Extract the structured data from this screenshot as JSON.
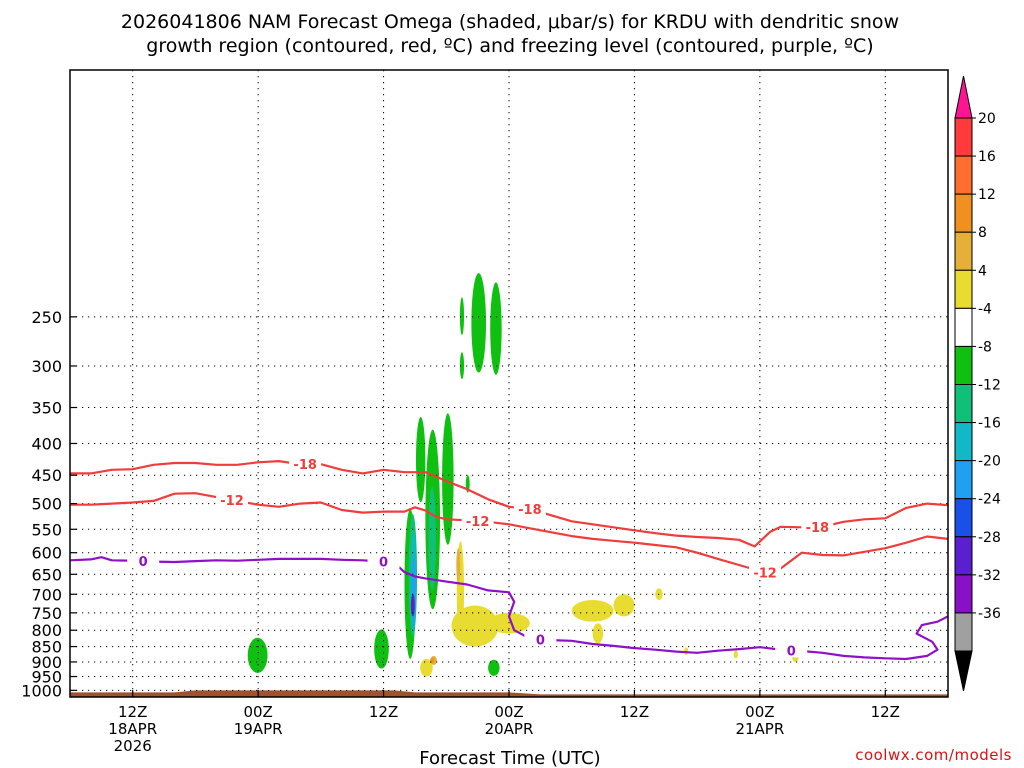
{
  "chart_data": {
    "type": "heatmap",
    "title_line1": "2026041806 NAM Forecast Omega (shaded, μbar/s) for KRDU with dendritic snow",
    "title_line2": "growth region (contoured, red, ºC) and freezing level (contoured, purple, ºC)",
    "xlabel": "Forecast Time (UTC)",
    "ylabel": "",
    "credit": "coolwx.com/models",
    "x_range_hours": [
      0,
      84
    ],
    "y_range_hpa": [
      1025,
      100
    ],
    "y_ticks": [
      250,
      300,
      350,
      400,
      450,
      500,
      550,
      600,
      650,
      700,
      750,
      800,
      850,
      900,
      950,
      1000
    ],
    "x_ticks": [
      {
        "hour": 6,
        "line1": "12Z",
        "line2": "18APR",
        "line3": "2026"
      },
      {
        "hour": 18,
        "line1": "00Z",
        "line2": "19APR",
        "line3": ""
      },
      {
        "hour": 30,
        "line1": "12Z",
        "line2": "",
        "line3": ""
      },
      {
        "hour": 42,
        "line1": "00Z",
        "line2": "20APR",
        "line3": ""
      },
      {
        "hour": 54,
        "line1": "12Z",
        "line2": "",
        "line3": ""
      },
      {
        "hour": 66,
        "line1": "00Z",
        "line2": "21APR",
        "line3": ""
      },
      {
        "hour": 78,
        "line1": "12Z",
        "line2": "",
        "line3": ""
      }
    ],
    "colorbar": {
      "labels": [
        "20",
        "16",
        "12",
        "8",
        "4",
        "-4",
        "-8",
        "-12",
        "-16",
        "-20",
        "-24",
        "-28",
        "-32",
        "-36"
      ],
      "colors": [
        "#ff1493",
        "#ff3b3b",
        "#ff6e2e",
        "#f0901e",
        "#e6b038",
        "#e8dc30",
        "#ffffff",
        "#10c010",
        "#10c078",
        "#10b8c8",
        "#20a0f0",
        "#1a50e8",
        "#5a20d0",
        "#8a10c8",
        "#a0a0a0",
        "#000000"
      ]
    },
    "contours": [
      {
        "name": "dgz-upper",
        "kind": "dendritic_-18C",
        "color": "#f03c3c",
        "labels": [
          {
            "text": "-18",
            "hour": 22.5
          },
          {
            "text": "-18",
            "hour": 44
          },
          {
            "text": "-18",
            "hour": 71.5
          }
        ],
        "points": [
          [
            0,
            447
          ],
          [
            2,
            447
          ],
          [
            4,
            441
          ],
          [
            6,
            440
          ],
          [
            8,
            433
          ],
          [
            10,
            430
          ],
          [
            12,
            430
          ],
          [
            14,
            433
          ],
          [
            16,
            433
          ],
          [
            18,
            429
          ],
          [
            20,
            427
          ],
          [
            22,
            432
          ],
          [
            24,
            432
          ],
          [
            26,
            441
          ],
          [
            28,
            447
          ],
          [
            30,
            441
          ],
          [
            32,
            445
          ],
          [
            34,
            445
          ],
          [
            35,
            452
          ],
          [
            36,
            460
          ],
          [
            38,
            474
          ],
          [
            40,
            492
          ],
          [
            42,
            506
          ],
          [
            44,
            510
          ],
          [
            46,
            522
          ],
          [
            48,
            534
          ],
          [
            50,
            540
          ],
          [
            52,
            546
          ],
          [
            54,
            552
          ],
          [
            56,
            558
          ],
          [
            58,
            563
          ],
          [
            60,
            566
          ],
          [
            62,
            568
          ],
          [
            64,
            572
          ],
          [
            65.5,
            586
          ],
          [
            67,
            555
          ],
          [
            68,
            545
          ],
          [
            70,
            546
          ],
          [
            72,
            545
          ],
          [
            74,
            535
          ],
          [
            76,
            530
          ],
          [
            78,
            528
          ],
          [
            80,
            508
          ],
          [
            82,
            500
          ],
          [
            84,
            503
          ]
        ]
      },
      {
        "name": "dgz-lower",
        "kind": "dendritic_-12C",
        "color": "#f03c3c",
        "labels": [
          {
            "text": "-12",
            "hour": 15.5
          },
          {
            "text": "-12",
            "hour": 39
          },
          {
            "text": "-12",
            "hour": 66.5
          }
        ],
        "points": [
          [
            0,
            502
          ],
          [
            2,
            502
          ],
          [
            4,
            500
          ],
          [
            6,
            498
          ],
          [
            8,
            495
          ],
          [
            10,
            482
          ],
          [
            12,
            481
          ],
          [
            14,
            488
          ],
          [
            16,
            495
          ],
          [
            18,
            502
          ],
          [
            20,
            506
          ],
          [
            22,
            500
          ],
          [
            24,
            498
          ],
          [
            26,
            512
          ],
          [
            28,
            517
          ],
          [
            30,
            515
          ],
          [
            32,
            515
          ],
          [
            33,
            507
          ],
          [
            34,
            513
          ],
          [
            35,
            525
          ],
          [
            36,
            530
          ],
          [
            38,
            532
          ],
          [
            40,
            535
          ],
          [
            42,
            540
          ],
          [
            44,
            548
          ],
          [
            46,
            556
          ],
          [
            48,
            564
          ],
          [
            50,
            570
          ],
          [
            52,
            574
          ],
          [
            54,
            578
          ],
          [
            56,
            583
          ],
          [
            58,
            588
          ],
          [
            60,
            600
          ],
          [
            62,
            614
          ],
          [
            64,
            628
          ],
          [
            66,
            642
          ],
          [
            67,
            650
          ],
          [
            68,
            636
          ],
          [
            70,
            600
          ],
          [
            72,
            605
          ],
          [
            74,
            606
          ],
          [
            76,
            598
          ],
          [
            78,
            590
          ],
          [
            80,
            578
          ],
          [
            82,
            565
          ],
          [
            84,
            570
          ]
        ]
      },
      {
        "name": "freezing-level",
        "kind": "freezing_0C",
        "color": "#9010c8",
        "labels": [
          {
            "text": "0",
            "hour": 7
          },
          {
            "text": "0",
            "hour": 30
          },
          {
            "text": "0",
            "hour": 45
          },
          {
            "text": "0",
            "hour": 69
          }
        ],
        "points": [
          [
            0,
            617
          ],
          [
            2,
            615
          ],
          [
            3,
            610
          ],
          [
            4,
            617
          ],
          [
            6,
            618
          ],
          [
            8,
            620
          ],
          [
            10,
            621
          ],
          [
            12,
            619
          ],
          [
            14,
            617
          ],
          [
            16,
            618
          ],
          [
            18,
            616
          ],
          [
            20,
            614
          ],
          [
            22,
            614
          ],
          [
            24,
            614
          ],
          [
            26,
            616
          ],
          [
            28,
            617
          ],
          [
            30,
            620
          ],
          [
            31,
            622
          ],
          [
            32,
            645
          ],
          [
            33,
            655
          ],
          [
            34,
            660
          ],
          [
            36,
            668
          ],
          [
            38,
            675
          ],
          [
            40,
            690
          ],
          [
            42,
            695
          ],
          [
            42.5,
            720
          ],
          [
            42,
            760
          ],
          [
            42.5,
            800
          ],
          [
            44,
            825
          ],
          [
            46,
            830
          ],
          [
            48,
            832
          ],
          [
            50,
            842
          ],
          [
            52,
            848
          ],
          [
            54,
            855
          ],
          [
            56,
            860
          ],
          [
            58,
            866
          ],
          [
            60,
            870
          ],
          [
            62,
            863
          ],
          [
            64,
            858
          ],
          [
            66,
            852
          ],
          [
            68,
            860
          ],
          [
            70,
            864
          ],
          [
            72,
            870
          ],
          [
            74,
            880
          ],
          [
            76,
            885
          ],
          [
            78,
            888
          ],
          [
            80,
            890
          ],
          [
            82,
            880
          ],
          [
            83,
            860
          ],
          [
            82.5,
            835
          ],
          [
            81,
            810
          ],
          [
            81.5,
            785
          ],
          [
            83,
            775
          ],
          [
            84,
            760
          ]
        ]
      }
    ],
    "shaded_regions": [
      {
        "name": "omega-ascent",
        "value_range": "-4 to -8",
        "color": "#10c010",
        "cells": [
          [
            37.3,
            250,
            0.4,
            35
          ],
          [
            37.3,
            300,
            0.4,
            30
          ],
          [
            38.4,
            260,
            1.4,
            95
          ],
          [
            40.2,
            265,
            1.1,
            90
          ],
          [
            17.0,
            880,
            1.9,
            115
          ],
          [
            29.1,
            860,
            1.4,
            125
          ],
          [
            33.1,
            430,
            0.9,
            135
          ],
          [
            32.0,
            700,
            1.1,
            380
          ],
          [
            34.0,
            560,
            1.4,
            360
          ],
          [
            35.6,
            470,
            1.1,
            225
          ],
          [
            37.9,
            465,
            0.3,
            30
          ],
          [
            40.0,
            920,
            1.1,
            55
          ]
        ]
      },
      {
        "name": "omega-ascent",
        "value_range": "-8 to -12",
        "color": "#10c078",
        "cells": [
          [
            32.4,
            670,
            0.8,
            300
          ],
          [
            34.3,
            580,
            0.7,
            220
          ]
        ]
      },
      {
        "name": "omega-ascent",
        "value_range": "-12 to -16",
        "color": "#10b8c8",
        "cells": [
          [
            32.6,
            680,
            0.5,
            250
          ]
        ]
      },
      {
        "name": "omega-ascent",
        "value_range": "-16 to -20",
        "color": "#20a0f0",
        "cells": [
          [
            32.7,
            700,
            0.3,
            180
          ]
        ]
      },
      {
        "name": "omega-ascent",
        "value_range": "-24 to -28",
        "color": "#5a20d0",
        "cells": [
          [
            32.7,
            730,
            0.2,
            60
          ]
        ]
      },
      {
        "name": "omega-descent",
        "value_range": "4 to 8",
        "color": "#e8dc30",
        "cells": [
          [
            37.0,
            700,
            0.7,
            250
          ],
          [
            36.5,
            790,
            4.5,
            120
          ],
          [
            40.0,
            780,
            4.0,
            60
          ],
          [
            48.0,
            745,
            4.0,
            60
          ],
          [
            52.0,
            730,
            2.0,
            60
          ],
          [
            56.0,
            700,
            0.7,
            30
          ],
          [
            50.0,
            810,
            1.0,
            60
          ],
          [
            58.8,
            865,
            0.3,
            25
          ],
          [
            63.5,
            875,
            0.4,
            25
          ],
          [
            69.0,
            870,
            0.8,
            60
          ],
          [
            33.5,
            920,
            1.2,
            60
          ]
        ]
      },
      {
        "name": "omega-descent",
        "value_range": "8 to 12",
        "color": "#e6b038",
        "cells": [
          [
            37.0,
            630,
            0.3,
            80
          ],
          [
            34.5,
            895,
            0.6,
            30
          ]
        ]
      },
      {
        "name": "omega-descent",
        "value_range": "12 to 16",
        "color": "#f0901e",
        "cells": [
          [
            34.5,
            895,
            0.3,
            15
          ]
        ]
      }
    ],
    "terrain_color": "#a0522d"
  }
}
